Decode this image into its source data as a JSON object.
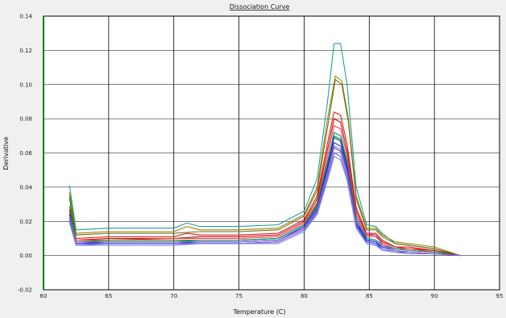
{
  "chart_data": {
    "type": "line",
    "title": "Dissociation Curve",
    "xlabel": "Temperature (C)",
    "ylabel": "Derivative",
    "xlim": [
      60,
      95
    ],
    "ylim": [
      -0.02,
      0.14
    ],
    "x_ticks": [
      "60",
      "65",
      "70",
      "75",
      "80",
      "85",
      "90",
      "95"
    ],
    "y_ticks": [
      "-0.02",
      "0.00",
      "0.02",
      "0.04",
      "0.06",
      "0.08",
      "0.10",
      "0.12",
      "0.14"
    ],
    "grid": true,
    "legend": "none",
    "series": [
      {
        "color": "#20a0a0",
        "values": [
          [
            62.0,
            0.041
          ],
          [
            62.5,
            0.015
          ],
          [
            65,
            0.016
          ],
          [
            70,
            0.016
          ],
          [
            71,
            0.019
          ],
          [
            72,
            0.017
          ],
          [
            75,
            0.017
          ],
          [
            78,
            0.018
          ],
          [
            80,
            0.026
          ],
          [
            81,
            0.045
          ],
          [
            81.8,
            0.09
          ],
          [
            82.3,
            0.124
          ],
          [
            82.8,
            0.124
          ],
          [
            83.3,
            0.1
          ],
          [
            84,
            0.04
          ],
          [
            84.8,
            0.018
          ],
          [
            85.5,
            0.017
          ],
          [
            86,
            0.013
          ],
          [
            87,
            0.007
          ],
          [
            88,
            0.006
          ],
          [
            90,
            0.004
          ],
          [
            92,
            0.0
          ]
        ]
      },
      {
        "color": "#a08000",
        "values": [
          [
            62.0,
            0.037
          ],
          [
            62.5,
            0.013
          ],
          [
            65,
            0.014
          ],
          [
            70,
            0.014
          ],
          [
            71,
            0.017
          ],
          [
            72,
            0.015
          ],
          [
            75,
            0.015
          ],
          [
            78,
            0.016
          ],
          [
            80,
            0.024
          ],
          [
            81,
            0.04
          ],
          [
            81.8,
            0.08
          ],
          [
            82.4,
            0.105
          ],
          [
            82.9,
            0.102
          ],
          [
            83.4,
            0.08
          ],
          [
            84,
            0.035
          ],
          [
            84.8,
            0.016
          ],
          [
            85.5,
            0.016
          ],
          [
            86,
            0.012
          ],
          [
            87,
            0.008
          ],
          [
            88,
            0.007
          ],
          [
            90,
            0.005
          ],
          [
            92,
            0.0
          ]
        ]
      },
      {
        "color": "#707020",
        "values": [
          [
            62.0,
            0.035
          ],
          [
            62.5,
            0.012
          ],
          [
            65,
            0.013
          ],
          [
            70,
            0.013
          ],
          [
            72,
            0.014
          ],
          [
            75,
            0.014
          ],
          [
            78,
            0.015
          ],
          [
            80,
            0.023
          ],
          [
            81,
            0.038
          ],
          [
            81.8,
            0.075
          ],
          [
            82.4,
            0.103
          ],
          [
            82.9,
            0.1
          ],
          [
            83.4,
            0.078
          ],
          [
            84,
            0.033
          ],
          [
            84.8,
            0.015
          ],
          [
            85.5,
            0.015
          ],
          [
            86,
            0.011
          ],
          [
            87,
            0.007
          ],
          [
            88,
            0.006
          ],
          [
            90,
            0.004
          ],
          [
            92,
            0.0
          ]
        ]
      },
      {
        "color": "#e02020",
        "values": [
          [
            62.0,
            0.029
          ],
          [
            62.5,
            0.01
          ],
          [
            65,
            0.011
          ],
          [
            70,
            0.011
          ],
          [
            71,
            0.013
          ],
          [
            72,
            0.012
          ],
          [
            75,
            0.012
          ],
          [
            78,
            0.013
          ],
          [
            80,
            0.021
          ],
          [
            81,
            0.035
          ],
          [
            81.8,
            0.066
          ],
          [
            82.3,
            0.084
          ],
          [
            82.8,
            0.082
          ],
          [
            83.3,
            0.065
          ],
          [
            84,
            0.028
          ],
          [
            84.8,
            0.013
          ],
          [
            85.5,
            0.013
          ],
          [
            86,
            0.009
          ],
          [
            87,
            0.005
          ],
          [
            88,
            0.005
          ],
          [
            90,
            0.003
          ],
          [
            92,
            0.0
          ]
        ]
      },
      {
        "color": "#c01010",
        "values": [
          [
            62.0,
            0.027
          ],
          [
            62.5,
            0.009
          ],
          [
            65,
            0.01
          ],
          [
            70,
            0.01
          ],
          [
            72,
            0.011
          ],
          [
            75,
            0.011
          ],
          [
            78,
            0.012
          ],
          [
            80,
            0.02
          ],
          [
            81,
            0.033
          ],
          [
            81.8,
            0.062
          ],
          [
            82.3,
            0.08
          ],
          [
            82.8,
            0.078
          ],
          [
            83.3,
            0.061
          ],
          [
            84,
            0.026
          ],
          [
            84.8,
            0.012
          ],
          [
            85.5,
            0.012
          ],
          [
            86,
            0.008
          ],
          [
            87,
            0.005
          ],
          [
            88,
            0.004
          ],
          [
            90,
            0.003
          ],
          [
            92,
            0.0
          ]
        ]
      },
      {
        "color": "#ff4040",
        "values": [
          [
            62.0,
            0.025
          ],
          [
            62.5,
            0.009
          ],
          [
            65,
            0.009
          ],
          [
            70,
            0.01
          ],
          [
            72,
            0.01
          ],
          [
            75,
            0.01
          ],
          [
            78,
            0.011
          ],
          [
            80,
            0.019
          ],
          [
            81,
            0.031
          ],
          [
            81.8,
            0.058
          ],
          [
            82.3,
            0.076
          ],
          [
            82.8,
            0.074
          ],
          [
            83.3,
            0.058
          ],
          [
            84,
            0.024
          ],
          [
            84.8,
            0.011
          ],
          [
            85.5,
            0.011
          ],
          [
            86,
            0.007
          ],
          [
            87,
            0.004
          ],
          [
            88,
            0.004
          ],
          [
            90,
            0.002
          ],
          [
            92,
            0.0
          ]
        ]
      },
      {
        "color": "#00a000",
        "values": [
          [
            62.0,
            0.034
          ],
          [
            62.5,
            0.008
          ],
          [
            65,
            0.009
          ],
          [
            70,
            0.009
          ],
          [
            72,
            0.009
          ],
          [
            75,
            0.009
          ],
          [
            78,
            0.01
          ],
          [
            80,
            0.018
          ],
          [
            81,
            0.03
          ],
          [
            81.8,
            0.055
          ],
          [
            82.3,
            0.07
          ],
          [
            82.8,
            0.068
          ],
          [
            83.3,
            0.054
          ],
          [
            84,
            0.022
          ],
          [
            84.8,
            0.01
          ],
          [
            85.5,
            0.009
          ],
          [
            86,
            0.006
          ],
          [
            87,
            0.004
          ],
          [
            88,
            0.003
          ],
          [
            90,
            0.002
          ],
          [
            92,
            0.0
          ]
        ]
      },
      {
        "color": "#009090",
        "values": [
          [
            62.0,
            0.026
          ],
          [
            62.5,
            0.008
          ],
          [
            65,
            0.008
          ],
          [
            70,
            0.008
          ],
          [
            72,
            0.009
          ],
          [
            75,
            0.009
          ],
          [
            78,
            0.01
          ],
          [
            80,
            0.018
          ],
          [
            81,
            0.029
          ],
          [
            81.8,
            0.054
          ],
          [
            82.3,
            0.072
          ],
          [
            82.8,
            0.07
          ],
          [
            83.3,
            0.055
          ],
          [
            84,
            0.022
          ],
          [
            84.8,
            0.01
          ],
          [
            85.5,
            0.009
          ],
          [
            86,
            0.006
          ],
          [
            87,
            0.004
          ],
          [
            88,
            0.003
          ],
          [
            90,
            0.002
          ],
          [
            92,
            0.0
          ]
        ]
      },
      {
        "color": "#1020c0",
        "values": [
          [
            62.0,
            0.024
          ],
          [
            62.5,
            0.007
          ],
          [
            65,
            0.008
          ],
          [
            70,
            0.008
          ],
          [
            72,
            0.008
          ],
          [
            75,
            0.008
          ],
          [
            78,
            0.009
          ],
          [
            80,
            0.017
          ],
          [
            81,
            0.028
          ],
          [
            81.8,
            0.052
          ],
          [
            82.3,
            0.069
          ],
          [
            82.8,
            0.067
          ],
          [
            83.3,
            0.052
          ],
          [
            84,
            0.02
          ],
          [
            84.8,
            0.009
          ],
          [
            85.5,
            0.008
          ],
          [
            86,
            0.005
          ],
          [
            87,
            0.003
          ],
          [
            88,
            0.002
          ],
          [
            90,
            0.001
          ],
          [
            92,
            0.0
          ]
        ]
      },
      {
        "color": "#3030e0",
        "values": [
          [
            62.0,
            0.022
          ],
          [
            62.5,
            0.007
          ],
          [
            65,
            0.007
          ],
          [
            70,
            0.007
          ],
          [
            72,
            0.008
          ],
          [
            75,
            0.008
          ],
          [
            78,
            0.009
          ],
          [
            80,
            0.016
          ],
          [
            81,
            0.027
          ],
          [
            81.8,
            0.05
          ],
          [
            82.3,
            0.066
          ],
          [
            82.8,
            0.064
          ],
          [
            83.3,
            0.05
          ],
          [
            84,
            0.019
          ],
          [
            84.8,
            0.008
          ],
          [
            85.5,
            0.007
          ],
          [
            86,
            0.005
          ],
          [
            87,
            0.003
          ],
          [
            88,
            0.002
          ],
          [
            90,
            0.001
          ],
          [
            92,
            0.0
          ]
        ]
      },
      {
        "color": "#5050ff",
        "values": [
          [
            62.0,
            0.021
          ],
          [
            62.5,
            0.007
          ],
          [
            65,
            0.007
          ],
          [
            70,
            0.007
          ],
          [
            72,
            0.007
          ],
          [
            75,
            0.007
          ],
          [
            78,
            0.008
          ],
          [
            80,
            0.015
          ],
          [
            81,
            0.026
          ],
          [
            81.8,
            0.048
          ],
          [
            82.3,
            0.063
          ],
          [
            82.8,
            0.061
          ],
          [
            83.3,
            0.048
          ],
          [
            84,
            0.018
          ],
          [
            84.8,
            0.008
          ],
          [
            85.5,
            0.007
          ],
          [
            86,
            0.004
          ],
          [
            87,
            0.002
          ],
          [
            88,
            0.002
          ],
          [
            90,
            0.001
          ],
          [
            92,
            0.0
          ]
        ]
      },
      {
        "color": "#6a6ad8",
        "values": [
          [
            62.0,
            0.02
          ],
          [
            62.5,
            0.006
          ],
          [
            65,
            0.007
          ],
          [
            70,
            0.007
          ],
          [
            72,
            0.007
          ],
          [
            75,
            0.007
          ],
          [
            78,
            0.008
          ],
          [
            80,
            0.015
          ],
          [
            81,
            0.025
          ],
          [
            81.8,
            0.046
          ],
          [
            82.3,
            0.06
          ],
          [
            82.8,
            0.058
          ],
          [
            83.3,
            0.046
          ],
          [
            84,
            0.017
          ],
          [
            84.8,
            0.007
          ],
          [
            85.5,
            0.006
          ],
          [
            86,
            0.004
          ],
          [
            87,
            0.002
          ],
          [
            88,
            0.001
          ],
          [
            90,
            0.001
          ],
          [
            92,
            0.0
          ]
        ]
      },
      {
        "color": "#8080e8",
        "values": [
          [
            62.0,
            0.019
          ],
          [
            62.5,
            0.006
          ],
          [
            65,
            0.006
          ],
          [
            70,
            0.006
          ],
          [
            72,
            0.007
          ],
          [
            75,
            0.007
          ],
          [
            78,
            0.007
          ],
          [
            80,
            0.014
          ],
          [
            81,
            0.024
          ],
          [
            81.8,
            0.044
          ],
          [
            82.3,
            0.058
          ],
          [
            82.8,
            0.056
          ],
          [
            83.3,
            0.044
          ],
          [
            84,
            0.016
          ],
          [
            84.8,
            0.007
          ],
          [
            85.5,
            0.006
          ],
          [
            86,
            0.003
          ],
          [
            87,
            0.002
          ],
          [
            88,
            0.001
          ],
          [
            90,
            0.001
          ],
          [
            92,
            0.0
          ]
        ]
      },
      {
        "color": "#a060c0",
        "values": [
          [
            62.0,
            0.023
          ],
          [
            62.5,
            0.008
          ],
          [
            65,
            0.008
          ],
          [
            70,
            0.008
          ],
          [
            72,
            0.008
          ],
          [
            75,
            0.008
          ],
          [
            78,
            0.009
          ],
          [
            80,
            0.016
          ],
          [
            81,
            0.027
          ],
          [
            81.8,
            0.049
          ],
          [
            82.3,
            0.064
          ],
          [
            82.8,
            0.062
          ],
          [
            83.3,
            0.049
          ],
          [
            84,
            0.019
          ],
          [
            84.8,
            0.013
          ],
          [
            85.5,
            0.012
          ],
          [
            86,
            0.006
          ],
          [
            87,
            0.003
          ],
          [
            88,
            0.002
          ],
          [
            90,
            0.001
          ],
          [
            92,
            0.0
          ]
        ]
      }
    ]
  }
}
